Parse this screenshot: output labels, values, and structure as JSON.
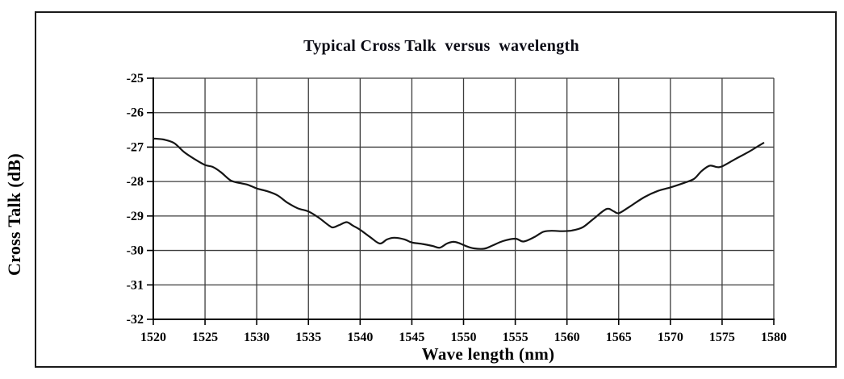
{
  "figure": {
    "background": "#ffffff",
    "border_color": "#1a1a1a"
  },
  "chart_data": {
    "type": "line",
    "title": "Typical Cross Talk  versus  wavelength",
    "xlabel": "Wave length (nm)",
    "ylabel": "Cross Talk (dB)",
    "xlim": [
      1520,
      1580
    ],
    "ylim": [
      -32,
      -25
    ],
    "x_ticks": [
      1520,
      1525,
      1530,
      1535,
      1540,
      1545,
      1550,
      1555,
      1560,
      1565,
      1570,
      1575,
      1580
    ],
    "y_ticks": [
      -25,
      -26,
      -27,
      -28,
      -29,
      -30,
      -31,
      -32
    ],
    "grid": true,
    "legend": "none",
    "colors": {
      "line": "#151515",
      "grid": "#3c3c3c",
      "axis": "#000000",
      "tick_text": "#000000",
      "title_text": "#0a0a14"
    },
    "series": [
      {
        "name": "Typical Cross Talk",
        "x": [
          1520,
          1521,
          1522,
          1523,
          1524,
          1525,
          1525.7,
          1526.5,
          1527.5,
          1528.5,
          1529.2,
          1530,
          1531,
          1532,
          1533,
          1534,
          1535,
          1536,
          1537,
          1537.4,
          1538,
          1538.7,
          1539.3,
          1540,
          1541,
          1541.9,
          1542.6,
          1543.3,
          1544.3,
          1545,
          1546,
          1547,
          1547.7,
          1548.4,
          1549,
          1549.5,
          1550.3,
          1551,
          1552,
          1552.7,
          1553.8,
          1555,
          1555.8,
          1556.8,
          1557.7,
          1558.5,
          1559.5,
          1560.5,
          1561.5,
          1562.5,
          1563.8,
          1564.5,
          1565,
          1566,
          1567.5,
          1568.8,
          1570,
          1571.3,
          1572.3,
          1573,
          1573.8,
          1574.5,
          1575,
          1576.2,
          1577.5,
          1578.5,
          1579
        ],
        "y": [
          -26.75,
          -26.78,
          -26.88,
          -27.15,
          -27.35,
          -27.52,
          -27.57,
          -27.72,
          -27.97,
          -28.05,
          -28.1,
          -28.2,
          -28.28,
          -28.4,
          -28.62,
          -28.78,
          -28.87,
          -29.05,
          -29.28,
          -29.33,
          -29.26,
          -29.18,
          -29.28,
          -29.4,
          -29.62,
          -29.8,
          -29.68,
          -29.63,
          -29.68,
          -29.77,
          -29.81,
          -29.87,
          -29.92,
          -29.8,
          -29.75,
          -29.78,
          -29.88,
          -29.94,
          -29.95,
          -29.87,
          -29.73,
          -29.66,
          -29.74,
          -29.62,
          -29.46,
          -29.43,
          -29.44,
          -29.42,
          -29.33,
          -29.1,
          -28.8,
          -28.86,
          -28.92,
          -28.74,
          -28.45,
          -28.27,
          -28.17,
          -28.04,
          -27.92,
          -27.7,
          -27.54,
          -27.58,
          -27.56,
          -27.36,
          -27.15,
          -26.97,
          -26.88
        ]
      }
    ]
  }
}
